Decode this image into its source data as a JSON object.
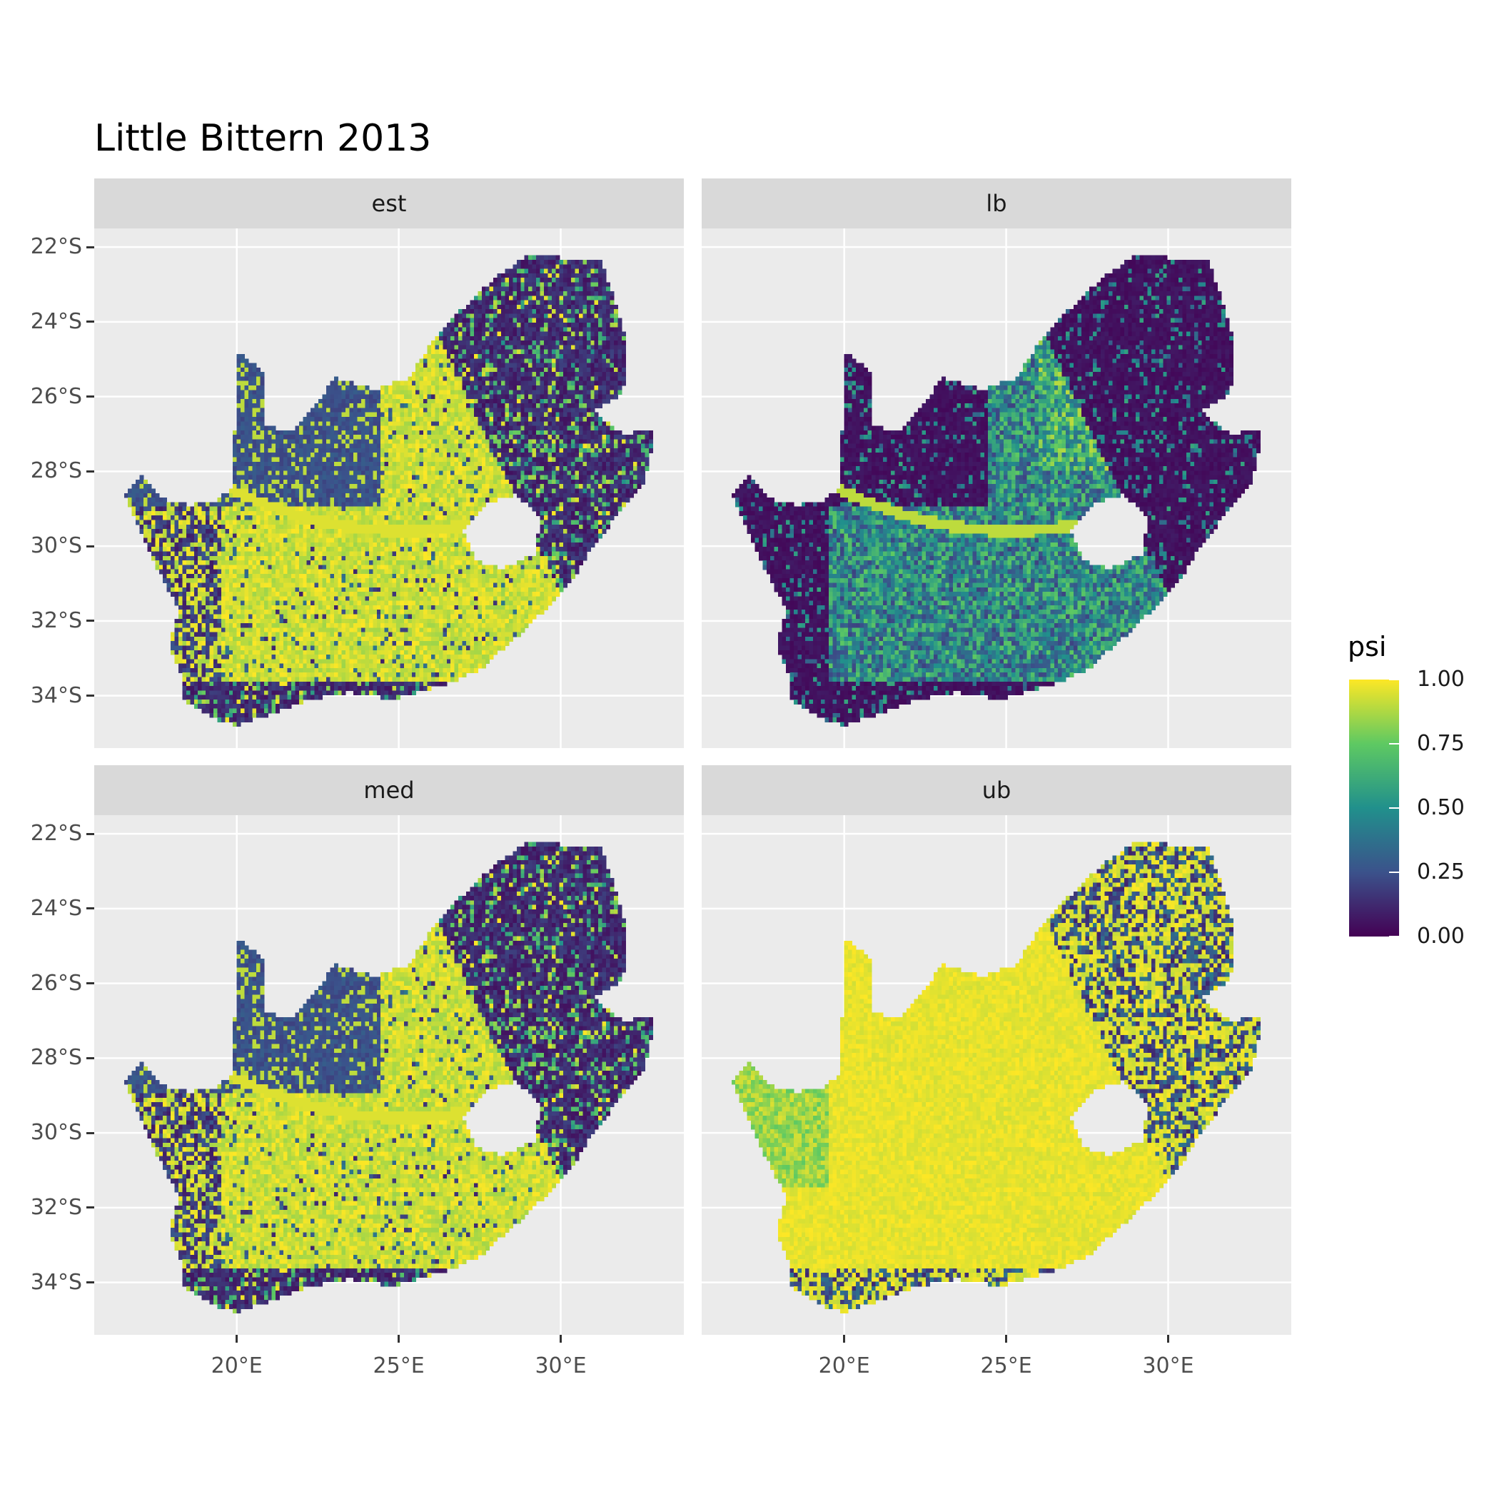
{
  "title": "Little Bittern 2013",
  "chart_data": {
    "type": "heatmap",
    "kind": "faceted raster map",
    "facets": [
      {
        "label": "est",
        "pattern": "mixed",
        "description_values": {
          "interior": 0.95,
          "north_west": 0.3,
          "east_coast": 0.05
        }
      },
      {
        "label": "lb",
        "pattern": "low",
        "description_values": {
          "interior": 0.6,
          "north_west": 0.05,
          "east_coast": 0.05
        }
      },
      {
        "label": "med",
        "pattern": "mixed",
        "description_values": {
          "interior": 0.95,
          "north_west": 0.25,
          "east_coast": 0.05
        }
      },
      {
        "label": "ub",
        "pattern": "high",
        "description_values": {
          "interior": 1.0,
          "north_west": 0.95,
          "east_coast": 0.4
        }
      }
    ],
    "x_axis": {
      "ticks": [
        "20°E",
        "25°E",
        "30°E"
      ],
      "values": [
        20,
        25,
        30
      ],
      "lim": [
        15.6,
        33.8
      ]
    },
    "y_axis": {
      "ticks": [
        "22°S",
        "24°S",
        "26°S",
        "28°S",
        "30°S",
        "32°S",
        "34°S"
      ],
      "values": [
        -22,
        -24,
        -26,
        -28,
        -30,
        -32,
        -34
      ],
      "lim": [
        -35.4,
        -21.5
      ]
    },
    "legend": {
      "title": "psi",
      "labels": [
        "1.00",
        "0.75",
        "0.50",
        "0.25",
        "0.00"
      ],
      "values": [
        1.0,
        0.75,
        0.5,
        0.25,
        0.0
      ],
      "colormap": "viridis",
      "placement": "right"
    },
    "grid": true
  },
  "colors": {
    "panel_bg": "#ebebeb",
    "strip_bg": "#d9d9d9",
    "grid": "#ffffff",
    "low": "#440154",
    "high": "#fde725"
  }
}
